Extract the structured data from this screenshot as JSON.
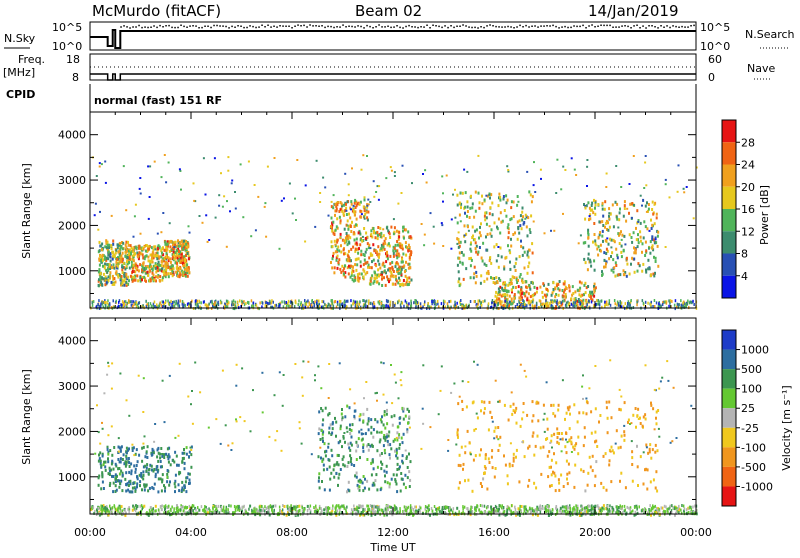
{
  "header": {
    "station": "McMurdo (fitACF)",
    "beam": "Beam 02",
    "date": "14/Jan/2019"
  },
  "noise_panel": {
    "left_label": "N.Sky",
    "right_label": "N.Search",
    "tick_top": "10^5",
    "tick_bottom": "10^0",
    "right_tick_top": "10^5",
    "right_tick_bottom": "10^0"
  },
  "freq_panel": {
    "left_label_1": "Freq.",
    "left_label_2": "[MHz]",
    "right_label": "Nave",
    "left_ticks": [
      "18",
      "8"
    ],
    "right_ticks": [
      "60",
      "0"
    ]
  },
  "cpid_panel": {
    "label": "CPID",
    "value": "normal (fast) 151 RF"
  },
  "power_panel": {
    "ylabel": "Slant Range [km]",
    "yticks": [
      "1000",
      "2000",
      "3000",
      "4000"
    ],
    "colorbar_label": "Power [dB]",
    "colorbar_ticks": [
      "4",
      "8",
      "12",
      "16",
      "20",
      "24",
      "28"
    ],
    "colors": [
      "#0a14e6",
      "#2850b4",
      "#3c8c6e",
      "#50b45a",
      "#e6c81e",
      "#f0a01e",
      "#f06414",
      "#e61414"
    ]
  },
  "velocity_panel": {
    "ylabel": "Slant Range [km]",
    "yticks": [
      "1000",
      "2000",
      "3000",
      "4000"
    ],
    "colorbar_label": "Velocity [m s⁻¹]",
    "colorbar_ticks": [
      "1000",
      "500",
      "100",
      "25",
      "-25",
      "-100",
      "-500",
      "-1000"
    ],
    "colors": [
      "#1e3cc8",
      "#2d6ea0",
      "#3c9650",
      "#64c832",
      "#b4b4b4",
      "#f0c81e",
      "#f0961e",
      "#f06414",
      "#e61414"
    ]
  },
  "xaxis": {
    "label": "Time UT",
    "ticks": [
      "00:00",
      "04:00",
      "08:00",
      "12:00",
      "16:00",
      "20:00",
      "00:00"
    ]
  },
  "chart_data": [
    {
      "type": "heatmap",
      "title": "Power",
      "xlabel": "Time UT",
      "ylabel": "Slant Range [km]",
      "xlim": [
        0,
        24
      ],
      "ylim": [
        180,
        4500
      ],
      "colorbar": {
        "label": "Power [dB]",
        "ticks": [
          4,
          8,
          12,
          16,
          20,
          24,
          28
        ]
      },
      "regions": [
        {
          "t": [
            0.3,
            1.5
          ],
          "r": [
            700,
            1700
          ],
          "power": 16
        },
        {
          "t": [
            1.5,
            2.9
          ],
          "r": [
            800,
            1600
          ],
          "power": 20
        },
        {
          "t": [
            2.9,
            3.9
          ],
          "r": [
            900,
            1700
          ],
          "power": 20
        },
        {
          "t": [
            9.5,
            11.0
          ],
          "r": [
            800,
            2600
          ],
          "power": 20
        },
        {
          "t": [
            11.0,
            12.7
          ],
          "r": [
            700,
            2000
          ],
          "power": 20
        },
        {
          "t": [
            14.5,
            17.5
          ],
          "r": [
            700,
            2800
          ],
          "power": 16
        },
        {
          "t": [
            16.0,
            20.0
          ],
          "r": [
            200,
            800
          ],
          "power": 20
        },
        {
          "t": [
            19.5,
            22.5
          ],
          "r": [
            900,
            2600
          ],
          "power": 16
        }
      ]
    },
    {
      "type": "heatmap",
      "title": "Velocity",
      "xlabel": "Time UT",
      "ylabel": "Slant Range [km]",
      "xlim": [
        0,
        24
      ],
      "ylim": [
        180,
        4500
      ],
      "colorbar": {
        "label": "Velocity [m s-1]",
        "ticks": [
          1000,
          500,
          100,
          25,
          -25,
          -100,
          -500,
          -1000
        ]
      },
      "regions": [
        {
          "t": [
            0.3,
            4.0
          ],
          "r": [
            700,
            1700
          ],
          "velocity": 300
        },
        {
          "t": [
            9.0,
            12.7
          ],
          "r": [
            700,
            2600
          ],
          "velocity": 200
        },
        {
          "t": [
            14.5,
            22.5
          ],
          "r": [
            700,
            2700
          ],
          "velocity": -300
        },
        {
          "t": [
            0.0,
            24.0
          ],
          "r": [
            180,
            400
          ],
          "velocity": 50
        }
      ]
    }
  ]
}
